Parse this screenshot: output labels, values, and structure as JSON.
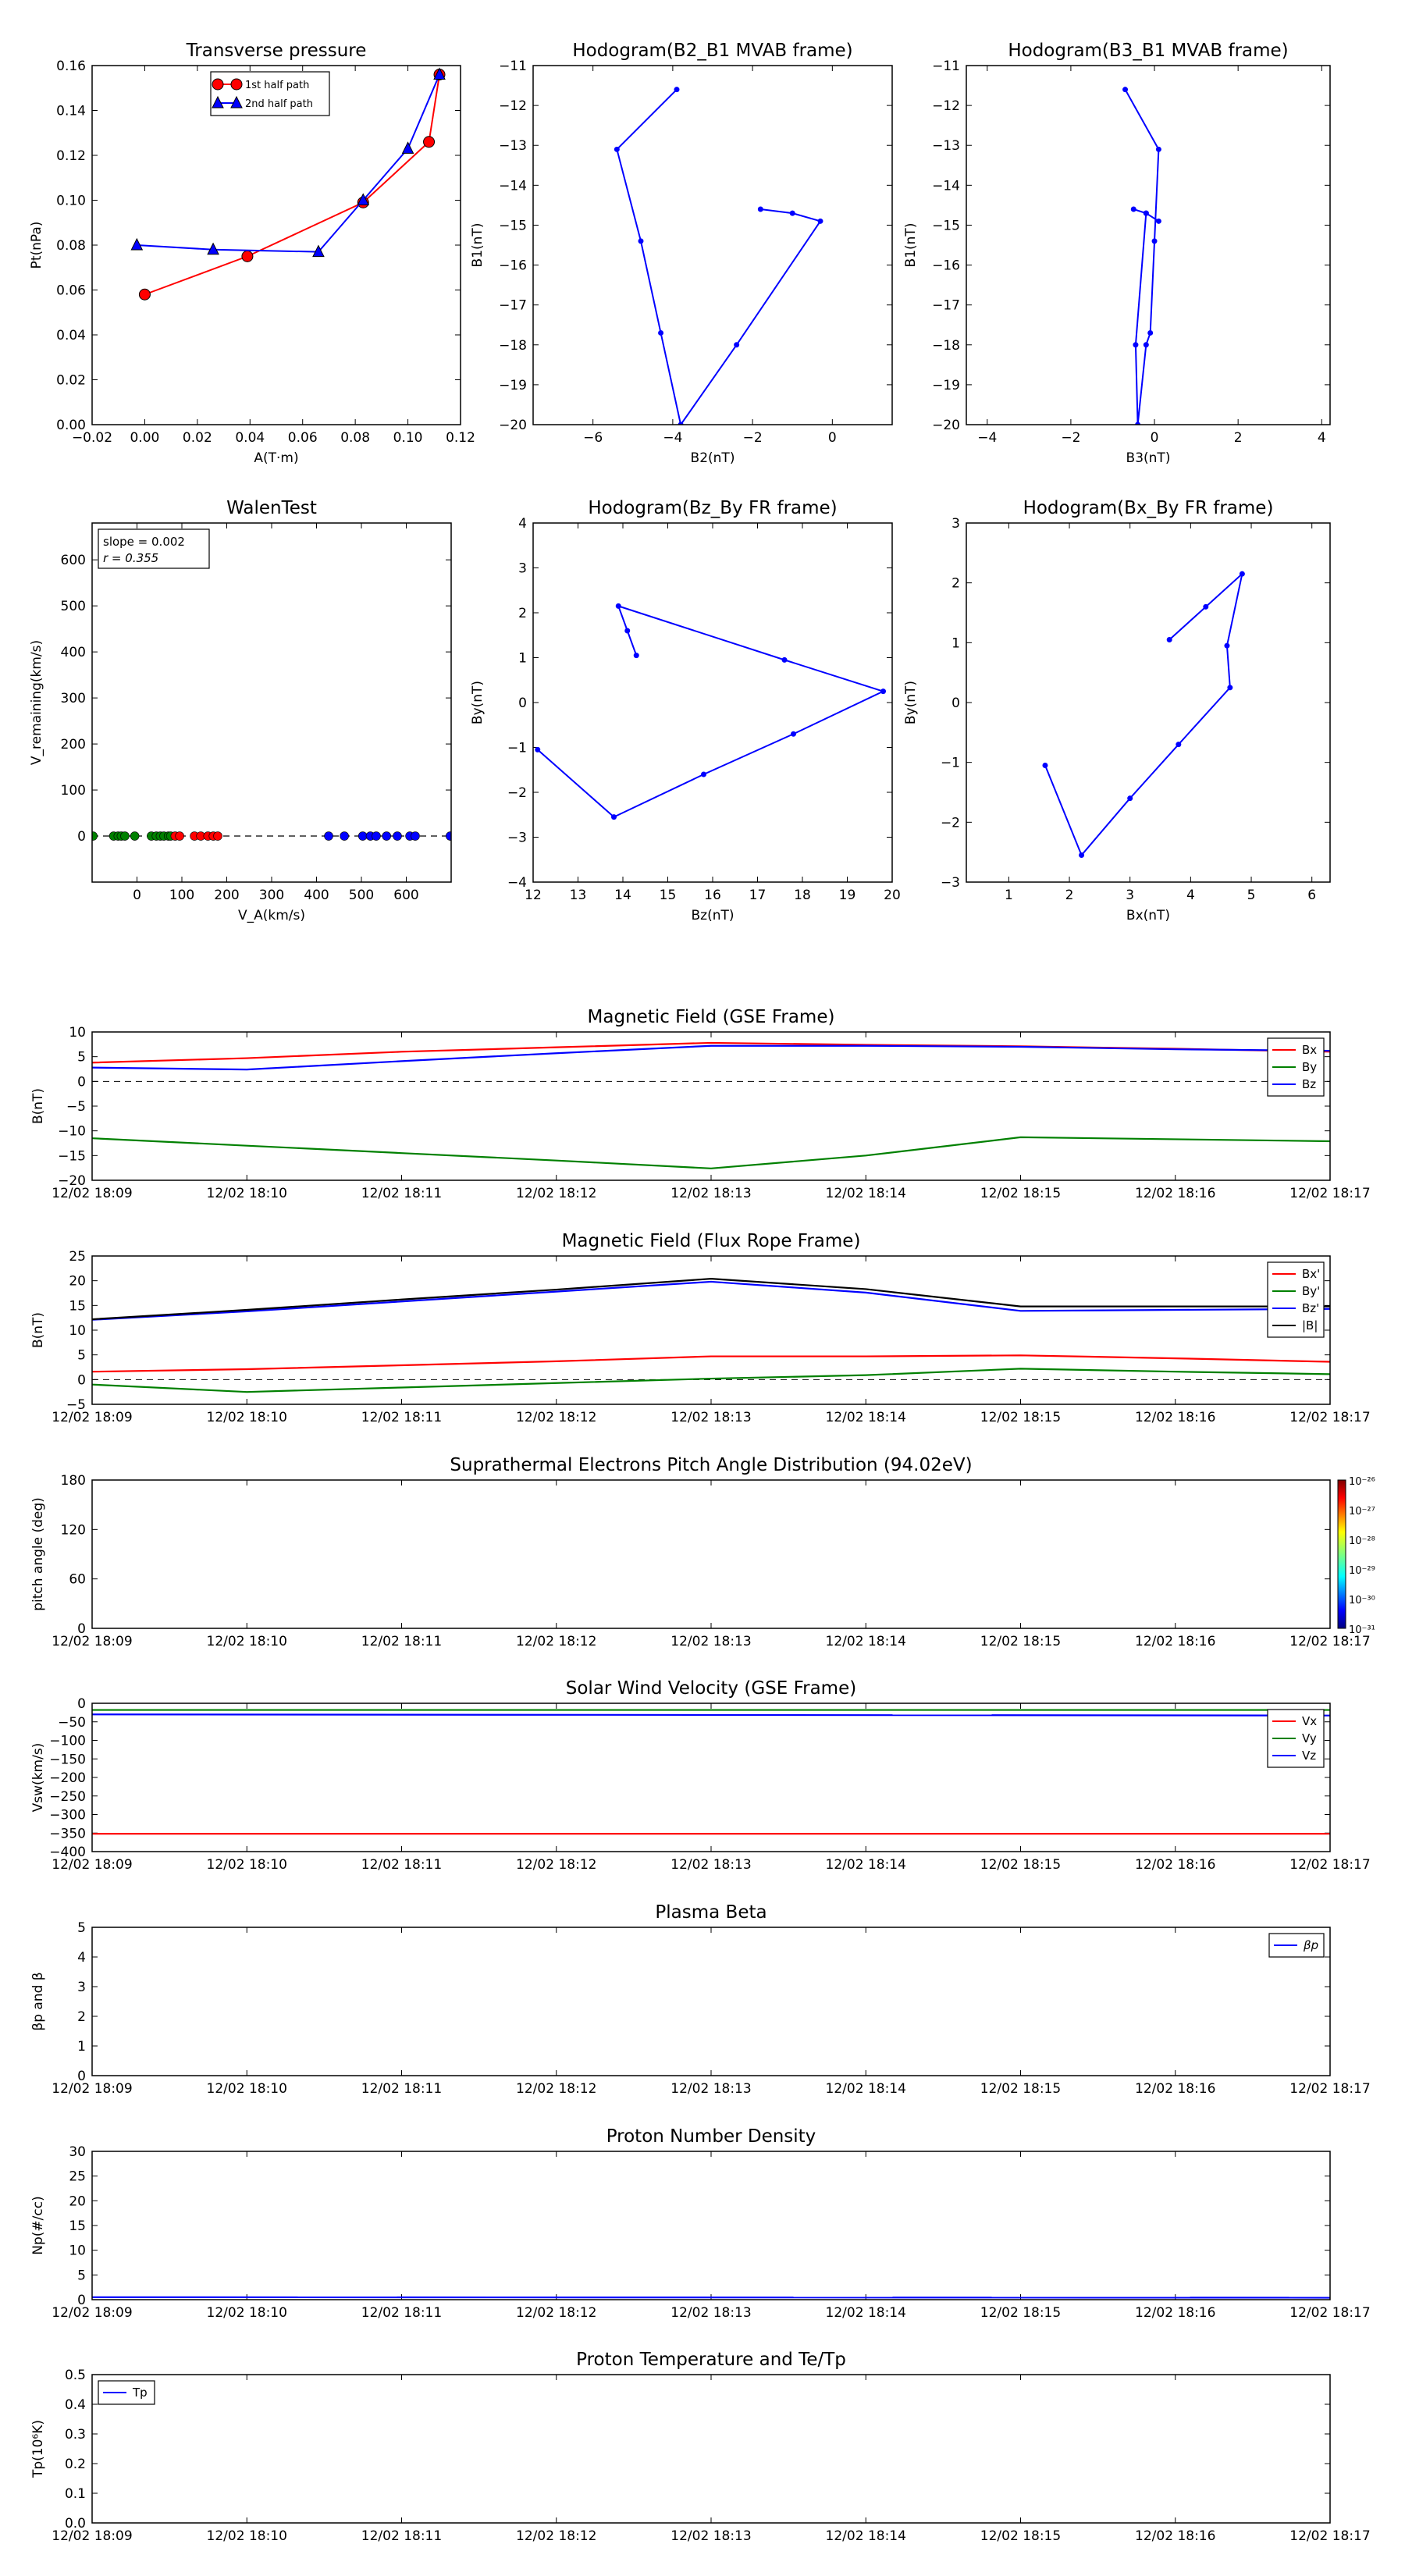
{
  "chart_data": [
    {
      "id": "transverse",
      "type": "line",
      "title": "Transverse pressure",
      "xlabel": "A(T·m)",
      "ylabel": "Pt(nPa)",
      "xlim": [
        -0.02,
        0.12
      ],
      "ylim": [
        0.0,
        0.16
      ],
      "xticks": [
        -0.02,
        0.0,
        0.02,
        0.04,
        0.06,
        0.08,
        0.1,
        0.12
      ],
      "xtick_labels": [
        "−0.02",
        "0.00",
        "0.02",
        "0.04",
        "0.06",
        "0.08",
        "0.10",
        "0.12"
      ],
      "yticks": [
        0.0,
        0.02,
        0.04,
        0.06,
        0.08,
        0.1,
        0.12,
        0.14,
        0.16
      ],
      "ytick_labels": [
        "0.00",
        "0.02",
        "0.04",
        "0.06",
        "0.08",
        "0.10",
        "0.12",
        "0.14",
        "0.16"
      ],
      "legend_position": "top-center",
      "series": [
        {
          "name": "1st half path",
          "color": "#ff0000",
          "marker": "circle",
          "x": [
            0.0,
            0.039,
            0.083,
            0.108,
            0.112
          ],
          "y": [
            0.058,
            0.075,
            0.099,
            0.126,
            0.156
          ]
        },
        {
          "name": "2nd half path",
          "color": "#0000ff",
          "marker": "triangle",
          "x": [
            -0.003,
            0.026,
            0.066,
            0.083,
            0.1,
            0.112
          ],
          "y": [
            0.08,
            0.078,
            0.077,
            0.1,
            0.123,
            0.156
          ]
        }
      ]
    },
    {
      "id": "hodo_b2b1",
      "type": "line",
      "title": "Hodogram(B2_B1 MVAB frame)",
      "xlabel": "B2(nT)",
      "ylabel": "B1(nT)",
      "xlim": [
        -7.5,
        1.5
      ],
      "ylim": [
        -20,
        -11
      ],
      "xticks": [
        -6,
        -4,
        -2,
        0
      ],
      "xtick_labels": [
        "−6",
        "−4",
        "−2",
        "0"
      ],
      "yticks": [
        -20,
        -19,
        -18,
        -17,
        -16,
        -15,
        -14,
        -13,
        -12,
        -11
      ],
      "ytick_labels": [
        "−20",
        "−19",
        "−18",
        "−17",
        "−16",
        "−15",
        "−14",
        "−13",
        "−12",
        "−11"
      ],
      "series": [
        {
          "color": "#0000ff",
          "marker": "dot",
          "x": [
            -3.9,
            -5.4,
            -4.8,
            -4.3,
            -3.8,
            -2.4,
            -0.3,
            -1.0,
            -1.8
          ],
          "y": [
            -11.6,
            -13.1,
            -15.4,
            -17.7,
            -20.0,
            -18.0,
            -14.9,
            -14.7,
            -14.6
          ]
        }
      ]
    },
    {
      "id": "hodo_b3b1",
      "type": "line",
      "title": "Hodogram(B3_B1 MVAB frame)",
      "xlabel": "B3(nT)",
      "ylabel": "B1(nT)",
      "xlim": [
        -4.5,
        4.2
      ],
      "ylim": [
        -20,
        -11
      ],
      "xticks": [
        -4,
        -2,
        0,
        2,
        4
      ],
      "xtick_labels": [
        "−4",
        "−2",
        "0",
        "2",
        "4"
      ],
      "yticks": [
        -20,
        -19,
        -18,
        -17,
        -16,
        -15,
        -14,
        -13,
        -12,
        -11
      ],
      "ytick_labels": [
        "−20",
        "−19",
        "−18",
        "−17",
        "−16",
        "−15",
        "−14",
        "−13",
        "−12",
        "−11"
      ],
      "series": [
        {
          "color": "#0000ff",
          "marker": "dot",
          "x": [
            -0.7,
            0.1,
            0.0,
            -0.1,
            -0.2,
            -0.4,
            -0.45,
            -0.2,
            0.1,
            -0.2,
            -0.5
          ],
          "y": [
            -11.6,
            -13.1,
            -15.4,
            -17.7,
            -18.0,
            -20.0,
            -18.0,
            -14.7,
            -14.9,
            -14.7,
            -14.6
          ]
        }
      ]
    },
    {
      "id": "walen",
      "type": "scatter",
      "title": "WalenTest",
      "xlabel": "V_A(km/s)",
      "ylabel": "V_remaining(km/s)",
      "xlim": [
        -100,
        700
      ],
      "ylim": [
        -100,
        680
      ],
      "xticks": [
        0,
        100,
        200,
        300,
        400,
        500,
        600
      ],
      "xtick_labels": [
        "0",
        "100",
        "200",
        "300",
        "400",
        "500",
        "600"
      ],
      "yticks": [
        0,
        100,
        200,
        300,
        400,
        500,
        600
      ],
      "ytick_labels": [
        "0",
        "100",
        "200",
        "300",
        "400",
        "500",
        "600"
      ],
      "annotation_lines": [
        "slope = 0.002",
        "r = 0.355"
      ],
      "series": [
        {
          "color": "#008000",
          "x": [
            -98,
            -52,
            -42,
            -35,
            -27,
            -5,
            32,
            43,
            52,
            60,
            70,
            75
          ],
          "y": [
            0,
            0,
            0,
            0,
            0,
            0,
            0,
            0,
            0,
            0,
            0,
            0
          ]
        },
        {
          "color": "#ff0000",
          "x": [
            85,
            95,
            128,
            142,
            158,
            170,
            180
          ],
          "y": [
            0,
            0,
            0,
            0,
            0,
            0,
            0
          ]
        },
        {
          "color": "#0000ff",
          "x": [
            427,
            462,
            503,
            520,
            533,
            556,
            580,
            608,
            620,
            698
          ],
          "y": [
            0,
            0,
            0,
            0,
            0,
            0,
            0,
            0,
            0,
            0
          ]
        }
      ]
    },
    {
      "id": "hodo_bzby",
      "type": "line",
      "title": "Hodogram(Bz_By FR frame)",
      "xlabel": "Bz(nT)",
      "ylabel": "By(nT)",
      "xlim": [
        12,
        20
      ],
      "ylim": [
        -4,
        4
      ],
      "xticks": [
        12,
        13,
        14,
        15,
        16,
        17,
        18,
        19,
        20
      ],
      "xtick_labels": [
        "12",
        "13",
        "14",
        "15",
        "16",
        "17",
        "18",
        "19",
        "20"
      ],
      "yticks": [
        -4,
        -3,
        -2,
        -1,
        0,
        1,
        2,
        3,
        4
      ],
      "ytick_labels": [
        "−4",
        "−3",
        "−2",
        "−1",
        "0",
        "1",
        "2",
        "3",
        "4"
      ],
      "series": [
        {
          "color": "#0000ff",
          "marker": "dot",
          "x": [
            12.1,
            13.8,
            15.8,
            17.8,
            19.8,
            17.6,
            13.9,
            14.1,
            14.3
          ],
          "y": [
            -1.05,
            -2.55,
            -1.6,
            -0.7,
            0.25,
            0.95,
            2.15,
            1.6,
            1.05
          ]
        }
      ]
    },
    {
      "id": "hodo_bxby",
      "type": "line",
      "title": "Hodogram(Bx_By FR frame)",
      "xlabel": "Bx(nT)",
      "ylabel": "By(nT)",
      "xlim": [
        0.3,
        6.3
      ],
      "ylim": [
        -3,
        3
      ],
      "xticks": [
        1,
        2,
        3,
        4,
        5,
        6
      ],
      "xtick_labels": [
        "1",
        "2",
        "3",
        "4",
        "5",
        "6"
      ],
      "yticks": [
        -3,
        -2,
        -1,
        0,
        1,
        2,
        3
      ],
      "ytick_labels": [
        "−3",
        "−2",
        "−1",
        "0",
        "1",
        "2",
        "3"
      ],
      "series": [
        {
          "color": "#0000ff",
          "marker": "dot",
          "x": [
            1.6,
            2.2,
            3.0,
            3.8,
            4.65,
            4.6,
            4.85,
            4.25,
            3.65
          ],
          "y": [
            -1.05,
            -2.55,
            -1.6,
            -0.7,
            0.25,
            0.95,
            2.15,
            1.6,
            1.05
          ]
        }
      ]
    },
    {
      "id": "mag_gse",
      "type": "line",
      "title": "Magnetic Field (GSE Frame)",
      "ylabel": "B(nT)",
      "xlim": [
        0,
        8
      ],
      "ylim": [
        -20,
        10
      ],
      "xtick_labels": [
        "12/02 18:09",
        "12/02 18:10",
        "12/02 18:11",
        "12/02 18:12",
        "12/02 18:13",
        "12/02 18:14",
        "12/02 18:15",
        "12/02 18:16",
        "12/02 18:17"
      ],
      "yticks": [
        -20,
        -15,
        -10,
        -5,
        0,
        5,
        10
      ],
      "ytick_labels": [
        "−20",
        "−15",
        "−10",
        "−5",
        "0",
        "5",
        "10"
      ],
      "zero_line": true,
      "legend_position": "top-right",
      "x": [
        0,
        1,
        2,
        3,
        4,
        5,
        6,
        7,
        8
      ],
      "series": [
        {
          "name": "Bx",
          "color": "#ff0000",
          "values": [
            3.8,
            4.7,
            6.0,
            6.9,
            7.8,
            7.4,
            7.1,
            6.6,
            6.0
          ]
        },
        {
          "name": "By",
          "color": "#008000",
          "values": [
            -11.5,
            -13.0,
            -14.5,
            -16.0,
            -17.6,
            -15.0,
            -11.3,
            -11.7,
            -12.1
          ]
        },
        {
          "name": "Bz",
          "color": "#0000ff",
          "values": [
            2.8,
            2.4,
            4.1,
            5.7,
            7.2,
            7.2,
            7.0,
            6.5,
            6.2
          ]
        }
      ]
    },
    {
      "id": "mag_fr",
      "type": "line",
      "title": "Magnetic Field (Flux Rope Frame)",
      "ylabel": "B(nT)",
      "xlim": [
        0,
        8
      ],
      "ylim": [
        -5,
        25
      ],
      "xtick_labels": [
        "12/02 18:09",
        "12/02 18:10",
        "12/02 18:11",
        "12/02 18:12",
        "12/02 18:13",
        "12/02 18:14",
        "12/02 18:15",
        "12/02 18:16",
        "12/02 18:17"
      ],
      "yticks": [
        -5,
        0,
        5,
        10,
        15,
        20,
        25
      ],
      "ytick_labels": [
        "−5",
        "0",
        "5",
        "10",
        "15",
        "20",
        "25"
      ],
      "zero_line": true,
      "legend_position": "top-right",
      "x": [
        0,
        1,
        2,
        3,
        4,
        5,
        6,
        7,
        8
      ],
      "series": [
        {
          "name": "Bx'",
          "color": "#ff0000",
          "values": [
            1.6,
            2.1,
            2.9,
            3.7,
            4.7,
            4.7,
            4.9,
            4.3,
            3.6
          ]
        },
        {
          "name": "By'",
          "color": "#008000",
          "values": [
            -1.0,
            -2.5,
            -1.6,
            -0.7,
            0.2,
            0.9,
            2.2,
            1.6,
            1.1
          ]
        },
        {
          "name": "Bz'",
          "color": "#0000ff",
          "values": [
            12.1,
            13.8,
            15.8,
            17.8,
            19.8,
            17.6,
            13.9,
            14.1,
            14.3
          ]
        },
        {
          "name": "|B|",
          "color": "#000000",
          "values": [
            12.2,
            14.1,
            16.2,
            18.2,
            20.4,
            18.3,
            14.8,
            14.8,
            14.8
          ]
        }
      ]
    },
    {
      "id": "pad",
      "type": "heatmap",
      "title": "Suprathermal Electrons Pitch Angle Distribution (94.02eV)",
      "ylabel": "pitch angle (deg)",
      "xlim": [
        0,
        8
      ],
      "ylim": [
        0,
        180
      ],
      "xtick_labels": [
        "12/02 18:09",
        "12/02 18:10",
        "12/02 18:11",
        "12/02 18:12",
        "12/02 18:13",
        "12/02 18:14",
        "12/02 18:15",
        "12/02 18:16",
        "12/02 18:17"
      ],
      "yticks": [
        0,
        60,
        120,
        180
      ],
      "ytick_labels": [
        "0",
        "60",
        "120",
        "180"
      ],
      "colorbar_labels": [
        "10⁻²⁶",
        "10⁻²⁷",
        "10⁻²⁸",
        "10⁻²⁹",
        "10⁻³⁰",
        "10⁻³¹"
      ],
      "colorbar_values": [
        -26,
        -27,
        -28,
        -29,
        -30,
        -31
      ]
    },
    {
      "id": "vsw",
      "type": "line",
      "title": "Solar Wind Velocity (GSE Frame)",
      "ylabel": "Vsw(km/s)",
      "xlim": [
        0,
        8
      ],
      "ylim": [
        -400,
        0
      ],
      "xtick_labels": [
        "12/02 18:09",
        "12/02 18:10",
        "12/02 18:11",
        "12/02 18:12",
        "12/02 18:13",
        "12/02 18:14",
        "12/02 18:15",
        "12/02 18:16",
        "12/02 18:17"
      ],
      "yticks": [
        -400,
        -350,
        -300,
        -250,
        -200,
        -150,
        -100,
        -50,
        0
      ],
      "ytick_labels": [
        "−400",
        "−350",
        "−300",
        "−250",
        "−200",
        "−150",
        "−100",
        "−50",
        "0"
      ],
      "legend_position": "top-right",
      "x": [
        0,
        8
      ],
      "series": [
        {
          "name": "Vx",
          "color": "#ff0000",
          "values": [
            -352,
            -352
          ]
        },
        {
          "name": "Vy",
          "color": "#008000",
          "values": [
            -18,
            -18
          ]
        },
        {
          "name": "Vz",
          "color": "#0000ff",
          "values": [
            -30,
            -33
          ]
        }
      ]
    },
    {
      "id": "beta",
      "type": "line",
      "title": "Plasma Beta",
      "ylabel": "βp and β",
      "xlim": [
        0,
        8
      ],
      "ylim": [
        0,
        5
      ],
      "xtick_labels": [
        "12/02 18:09",
        "12/02 18:10",
        "12/02 18:11",
        "12/02 18:12",
        "12/02 18:13",
        "12/02 18:14",
        "12/02 18:15",
        "12/02 18:16",
        "12/02 18:17"
      ],
      "yticks": [
        0,
        1,
        2,
        3,
        4,
        5
      ],
      "ytick_labels": [
        "0",
        "1",
        "2",
        "3",
        "4",
        "5"
      ],
      "legend_position": "top-right",
      "series": [
        {
          "name": "βp",
          "color": "#0000ff",
          "values": []
        }
      ]
    },
    {
      "id": "np",
      "type": "line",
      "title": "Proton Number Density",
      "ylabel": "Np(#/cc)",
      "xlim": [
        0,
        8
      ],
      "ylim": [
        0,
        30
      ],
      "xtick_labels": [
        "12/02 18:09",
        "12/02 18:10",
        "12/02 18:11",
        "12/02 18:12",
        "12/02 18:13",
        "12/02 18:14",
        "12/02 18:15",
        "12/02 18:16",
        "12/02 18:17"
      ],
      "yticks": [
        0,
        5,
        10,
        15,
        20,
        25,
        30
      ],
      "ytick_labels": [
        "0",
        "5",
        "10",
        "15",
        "20",
        "25",
        "30"
      ],
      "x": [
        0,
        8
      ],
      "series": [
        {
          "color": "#0000ff",
          "values": [
            0.5,
            0.4
          ]
        }
      ]
    },
    {
      "id": "tp",
      "type": "line",
      "title": "Proton Temperature and Te/Tp",
      "ylabel": "Tp(10⁶K)",
      "xlim": [
        0,
        8
      ],
      "ylim": [
        0,
        0.5
      ],
      "xtick_labels": [
        "12/02 18:09",
        "12/02 18:10",
        "12/02 18:11",
        "12/02 18:12",
        "12/02 18:13",
        "12/02 18:14",
        "12/02 18:15",
        "12/02 18:16",
        "12/02 18:17"
      ],
      "yticks": [
        0,
        0.1,
        0.2,
        0.3,
        0.4,
        0.5
      ],
      "ytick_labels": [
        "0.0",
        "0.1",
        "0.2",
        "0.3",
        "0.4",
        "0.5"
      ],
      "legend_position": "top-left",
      "series": [
        {
          "name": "Tp",
          "color": "#0000ff",
          "values": []
        }
      ]
    }
  ]
}
